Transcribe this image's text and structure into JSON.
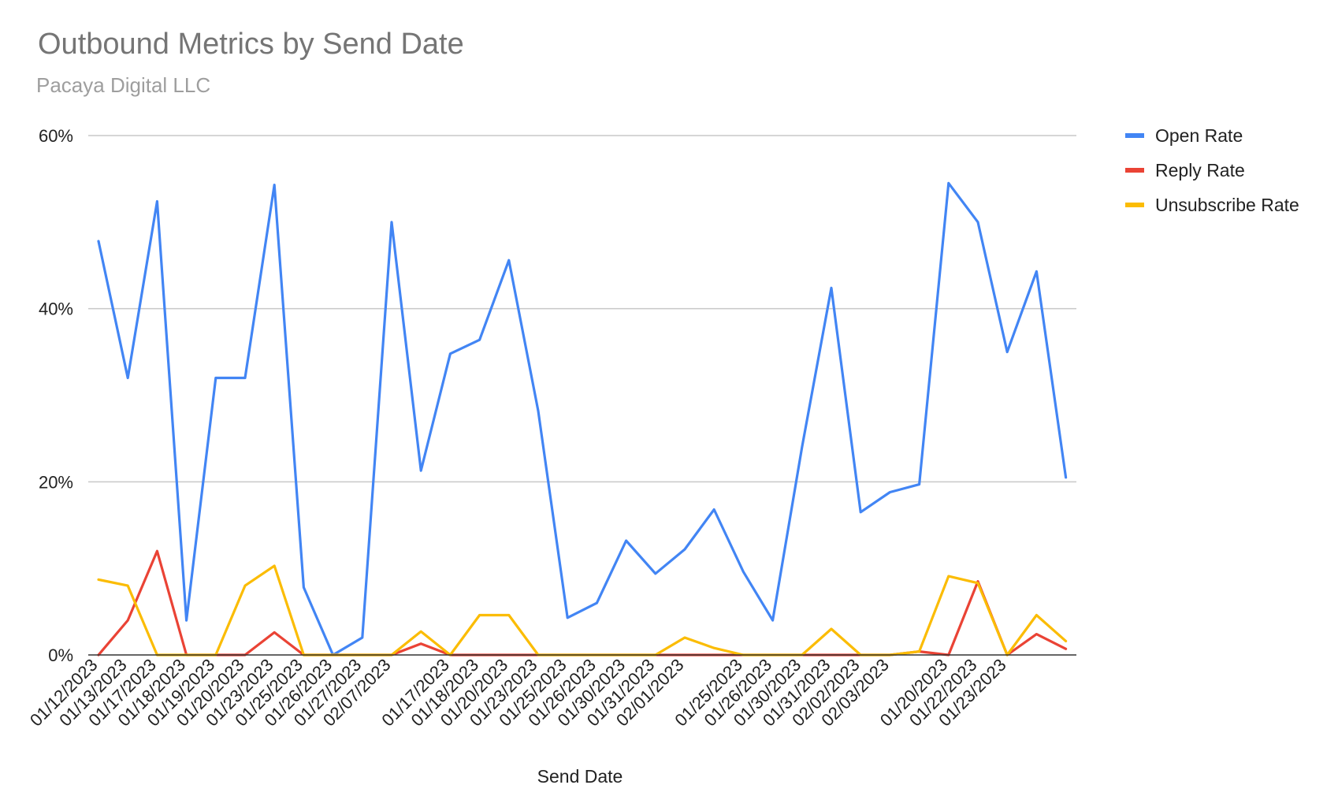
{
  "chart_data": {
    "type": "line",
    "title": "Outbound Metrics by Send Date",
    "subtitle": "Pacaya Digital LLC",
    "xlabel": "Send Date",
    "ylabel": "",
    "ylim": [
      0,
      60
    ],
    "yticks": [
      "0%",
      "20%",
      "40%",
      "60%"
    ],
    "grid": true,
    "legend_position": "right",
    "categories": [
      "01/12/2023",
      "01/13/2023",
      "01/17/2023",
      "01/18/2023",
      "01/19/2023",
      "01/20/2023",
      "01/23/2023",
      "01/25/2023",
      "01/26/2023",
      "01/27/2023",
      "02/07/2023",
      "",
      "01/17/2023",
      "01/18/2023",
      "01/20/2023",
      "01/23/2023",
      "01/25/2023",
      "01/26/2023",
      "01/30/2023",
      "01/31/2023",
      "02/01/2023",
      "",
      "01/25/2023",
      "01/26/2023",
      "01/30/2023",
      "01/31/2023",
      "02/02/2023",
      "02/03/2023",
      "",
      "01/20/2023",
      "01/22/2023",
      "01/23/2023",
      "",
      ""
    ],
    "series": [
      {
        "name": "Open Rate",
        "color": "#4285f4",
        "values": [
          47.8,
          32.0,
          52.4,
          4.0,
          32.0,
          32.0,
          54.3,
          7.8,
          0,
          2.0,
          50.0,
          21.3,
          34.8,
          36.4,
          45.6,
          28.2,
          4.3,
          6.0,
          13.2,
          9.4,
          12.2,
          16.8,
          9.6,
          4.0,
          24.0,
          42.4,
          16.5,
          18.8,
          19.7,
          54.5,
          50.0,
          35.0,
          44.3,
          20.5
        ]
      },
      {
        "name": "Reply Rate",
        "color": "#ea4335",
        "values": [
          0,
          4.0,
          12.0,
          0,
          0,
          0,
          2.6,
          0,
          0,
          0,
          0,
          1.3,
          0,
          0,
          0,
          0,
          0,
          0,
          0,
          0,
          0,
          0,
          0,
          0,
          0,
          0,
          0,
          0,
          0.4,
          0,
          8.5,
          0,
          2.4,
          0.7
        ]
      },
      {
        "name": "Unsubscribe Rate",
        "color": "#fbbc04",
        "values": [
          8.7,
          8.0,
          0,
          0,
          0,
          8.0,
          10.3,
          0,
          0,
          0,
          0,
          2.7,
          0,
          4.6,
          4.6,
          0,
          0,
          0,
          0,
          0,
          2.0,
          0.8,
          0,
          0,
          0,
          3.0,
          0,
          0,
          0.4,
          9.1,
          8.3,
          0,
          4.6,
          1.6
        ]
      }
    ]
  }
}
